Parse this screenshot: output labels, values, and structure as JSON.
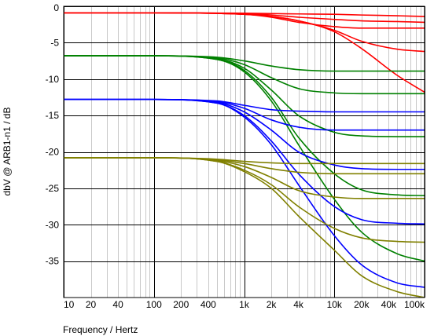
{
  "chart_data": {
    "type": "line",
    "title": "",
    "xlabel": "Frequency / Hertz",
    "ylabel": "dbV @ ARB1-n1 / dB",
    "xscale": "log",
    "xlim": [
      10,
      100000
    ],
    "ylim": [
      -40,
      0
    ],
    "grid": true,
    "legend": "none",
    "x_ticks": [
      10,
      20,
      40,
      100,
      200,
      400,
      1000,
      2000,
      4000,
      10000,
      20000,
      40000,
      100000
    ],
    "x_tick_labels": [
      "10",
      "20",
      "40",
      "100",
      "200",
      "400",
      "1k",
      "2k",
      "4k",
      "10k",
      "20k",
      "40k",
      "100k"
    ],
    "y_ticks": [
      0,
      -5,
      -10,
      -15,
      -20,
      -25,
      -30,
      -35
    ],
    "y_tick_labels": [
      "0",
      "-5",
      "-10",
      "-15",
      "-20",
      "-25",
      "-30",
      "-35"
    ],
    "series_colors": {
      "red": "#ff0000",
      "green": "#008000",
      "blue": "#0000ff",
      "olive": "#808000"
    },
    "series": [
      {
        "color": "red",
        "x": [
          10,
          100,
          1000,
          2000,
          4000,
          10000,
          20000,
          50000,
          100000
        ],
        "values": [
          -0.9,
          -0.9,
          -0.95,
          -1.0,
          -1.05,
          -1.1,
          -1.2,
          -1.3,
          -1.4
        ]
      },
      {
        "color": "red",
        "x": [
          10,
          100,
          1000,
          2000,
          4000,
          10000,
          20000,
          50000,
          100000
        ],
        "values": [
          -0.9,
          -0.9,
          -1.0,
          -1.2,
          -1.5,
          -1.8,
          -2.0,
          -2.1,
          -2.2
        ]
      },
      {
        "color": "red",
        "x": [
          10,
          100,
          1000,
          2000,
          4000,
          10000,
          20000,
          50000,
          100000
        ],
        "values": [
          -0.9,
          -0.9,
          -1.1,
          -1.5,
          -2.2,
          -2.8,
          -3.0,
          -3.0,
          -3.0
        ]
      },
      {
        "color": "red",
        "x": [
          10,
          100,
          1000,
          2000,
          4000,
          10000,
          20000,
          50000,
          100000
        ],
        "values": [
          -0.9,
          -0.9,
          -1.1,
          -1.4,
          -2.0,
          -3.3,
          -4.8,
          -5.9,
          -6.2
        ]
      },
      {
        "color": "red",
        "x": [
          10,
          100,
          1000,
          2000,
          4000,
          10000,
          20000,
          50000,
          100000
        ],
        "values": [
          -0.9,
          -0.9,
          -1.1,
          -1.4,
          -2.0,
          -3.5,
          -5.8,
          -9.5,
          -11.8
        ]
      },
      {
        "color": "green",
        "x": [
          10,
          100,
          500,
          1000,
          2000,
          4000,
          10000,
          20000,
          50000,
          100000
        ],
        "values": [
          -6.8,
          -6.8,
          -7.0,
          -7.5,
          -8.2,
          -8.7,
          -8.9,
          -8.9,
          -8.9,
          -8.9
        ]
      },
      {
        "color": "green",
        "x": [
          10,
          100,
          500,
          1000,
          2000,
          4000,
          10000,
          20000,
          50000,
          100000
        ],
        "values": [
          -6.8,
          -6.8,
          -7.1,
          -8.0,
          -9.8,
          -11.3,
          -11.9,
          -12.0,
          -12.0,
          -12.0
        ]
      },
      {
        "color": "green",
        "x": [
          10,
          100,
          500,
          1000,
          2000,
          4000,
          10000,
          20000,
          50000,
          100000
        ],
        "values": [
          -6.8,
          -6.8,
          -7.2,
          -8.5,
          -11.5,
          -15.0,
          -17.3,
          -17.8,
          -17.9,
          -17.9
        ]
      },
      {
        "color": "green",
        "x": [
          10,
          100,
          500,
          1000,
          2000,
          4000,
          10000,
          20000,
          50000,
          100000
        ],
        "values": [
          -6.8,
          -6.8,
          -7.3,
          -8.8,
          -12.5,
          -18.0,
          -23.0,
          -25.2,
          -25.9,
          -26.0
        ]
      },
      {
        "color": "green",
        "x": [
          10,
          100,
          500,
          1000,
          2000,
          4000,
          10000,
          20000,
          50000,
          100000
        ],
        "values": [
          -6.8,
          -6.8,
          -7.3,
          -9.0,
          -13.0,
          -19.0,
          -26.5,
          -31.0,
          -34.0,
          -35.0
        ]
      },
      {
        "color": "blue",
        "x": [
          10,
          100,
          500,
          1000,
          2000,
          4000,
          10000,
          20000,
          50000,
          100000
        ],
        "values": [
          -12.8,
          -12.8,
          -13.0,
          -13.6,
          -14.2,
          -14.4,
          -14.5,
          -14.5,
          -14.5,
          -14.5
        ]
      },
      {
        "color": "blue",
        "x": [
          10,
          100,
          500,
          1000,
          2000,
          4000,
          10000,
          20000,
          50000,
          100000
        ],
        "values": [
          -12.8,
          -12.8,
          -13.1,
          -14.0,
          -15.6,
          -16.6,
          -17.0,
          -17.0,
          -17.0,
          -17.0
        ]
      },
      {
        "color": "blue",
        "x": [
          10,
          100,
          500,
          1000,
          2000,
          4000,
          10000,
          20000,
          50000,
          100000
        ],
        "values": [
          -12.8,
          -12.8,
          -13.2,
          -14.5,
          -17.0,
          -20.0,
          -21.8,
          -22.3,
          -22.4,
          -22.4
        ]
      },
      {
        "color": "blue",
        "x": [
          10,
          100,
          500,
          1000,
          2000,
          4000,
          10000,
          20000,
          50000,
          100000
        ],
        "values": [
          -12.8,
          -12.8,
          -13.3,
          -15.0,
          -18.5,
          -23.0,
          -27.5,
          -29.3,
          -29.8,
          -29.9
        ]
      },
      {
        "color": "blue",
        "x": [
          10,
          100,
          500,
          1000,
          2000,
          4000,
          10000,
          20000,
          50000,
          100000
        ],
        "values": [
          -12.8,
          -12.8,
          -13.3,
          -15.2,
          -19.0,
          -24.5,
          -31.5,
          -35.5,
          -38.0,
          -38.6
        ]
      },
      {
        "color": "olive",
        "x": [
          10,
          100,
          500,
          1000,
          2000,
          4000,
          10000,
          20000,
          50000,
          100000
        ],
        "values": [
          -20.8,
          -20.8,
          -21.0,
          -21.3,
          -21.5,
          -21.6,
          -21.6,
          -21.6,
          -21.6,
          -21.6
        ]
      },
      {
        "color": "olive",
        "x": [
          10,
          100,
          500,
          1000,
          2000,
          4000,
          10000,
          20000,
          50000,
          100000
        ],
        "values": [
          -20.8,
          -20.8,
          -21.1,
          -21.6,
          -22.3,
          -22.8,
          -23.0,
          -23.0,
          -23.0,
          -23.0
        ]
      },
      {
        "color": "olive",
        "x": [
          10,
          100,
          500,
          1000,
          2000,
          4000,
          10000,
          20000,
          50000,
          100000
        ],
        "values": [
          -20.8,
          -20.8,
          -21.2,
          -22.0,
          -23.5,
          -25.3,
          -26.2,
          -26.4,
          -26.4,
          -26.4
        ]
      },
      {
        "color": "olive",
        "x": [
          10,
          100,
          500,
          1000,
          2000,
          4000,
          10000,
          20000,
          50000,
          100000
        ],
        "values": [
          -20.8,
          -20.8,
          -21.3,
          -22.5,
          -24.5,
          -27.5,
          -30.5,
          -31.8,
          -32.3,
          -32.4
        ]
      },
      {
        "color": "olive",
        "x": [
          10,
          100,
          500,
          1000,
          2000,
          4000,
          10000,
          20000,
          50000,
          100000
        ],
        "values": [
          -20.8,
          -20.8,
          -21.3,
          -22.7,
          -25.0,
          -28.8,
          -33.5,
          -37.0,
          -39.2,
          -40.0
        ]
      }
    ]
  }
}
